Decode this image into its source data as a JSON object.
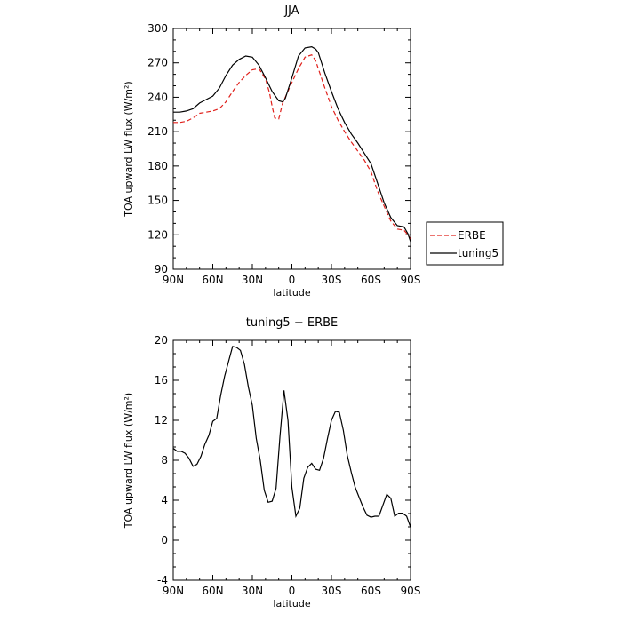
{
  "chart_data": [
    {
      "type": "line",
      "title": "JJA",
      "xlabel": "latitude",
      "ylabel": "TOA upward LW flux (W/m²)",
      "ylim": [
        90,
        300
      ],
      "yticks": [
        90,
        120,
        150,
        180,
        210,
        240,
        270,
        300
      ],
      "xlim": [
        90,
        -90
      ],
      "xticks": [
        90,
        60,
        30,
        0,
        -30,
        -60,
        -90
      ],
      "xtick_labels": [
        "90N",
        "60N",
        "30N",
        "0",
        "30S",
        "60S",
        "90S"
      ],
      "legend": "right",
      "series": [
        {
          "name": "ERBE",
          "color": "#e0201b",
          "dash": "dashed",
          "x": [
            90,
            85,
            80,
            75,
            70,
            65,
            60,
            55,
            50,
            45,
            40,
            35,
            30,
            25,
            20,
            17,
            15,
            13,
            10,
            7,
            5,
            0,
            -5,
            -10,
            -15,
            -18,
            -20,
            -25,
            -30,
            -35,
            -40,
            -45,
            -50,
            -55,
            -60,
            -65,
            -70,
            -75,
            -80,
            -85,
            -88,
            -90
          ],
          "y": [
            218,
            218,
            219,
            222,
            226,
            227,
            228,
            230,
            236,
            245,
            253,
            259,
            264,
            265,
            256,
            244,
            232,
            222,
            221,
            235,
            240,
            253,
            265,
            275,
            277,
            272,
            265,
            248,
            232,
            220,
            210,
            201,
            193,
            185,
            175,
            158,
            145,
            132,
            125,
            124,
            120,
            116
          ]
        },
        {
          "name": "tuning5",
          "color": "#000000",
          "dash": "solid",
          "x": [
            90,
            85,
            80,
            75,
            70,
            65,
            60,
            55,
            50,
            45,
            40,
            35,
            30,
            25,
            20,
            15,
            10,
            7,
            5,
            0,
            -5,
            -10,
            -15,
            -18,
            -20,
            -25,
            -30,
            -35,
            -40,
            -45,
            -50,
            -55,
            -60,
            -65,
            -70,
            -75,
            -80,
            -85,
            -88,
            -90
          ],
          "y": [
            227,
            227,
            228,
            230,
            235,
            238,
            241,
            248,
            259,
            268,
            273,
            276,
            275,
            268,
            257,
            245,
            237,
            236,
            239,
            257,
            276,
            283,
            284,
            282,
            279,
            261,
            245,
            230,
            218,
            208,
            200,
            191,
            182,
            165,
            148,
            135,
            128,
            127,
            121,
            114
          ]
        }
      ]
    },
    {
      "type": "line",
      "title": "tuning5 − ERBE",
      "xlabel": "latitude",
      "ylabel": "TOA upward LW flux (W/m²)",
      "ylim": [
        -4,
        20
      ],
      "yticks": [
        -4,
        0,
        4,
        8,
        12,
        16,
        20
      ],
      "xlim": [
        90,
        -90
      ],
      "xticks": [
        90,
        60,
        30,
        0,
        -30,
        -60,
        -90
      ],
      "xtick_labels": [
        "90N",
        "60N",
        "30N",
        "0",
        "30S",
        "60S",
        "90S"
      ],
      "series": [
        {
          "color": "#000000",
          "dash": "solid",
          "x": [
            90,
            87,
            84,
            81,
            78,
            75,
            72,
            69,
            66,
            63,
            60,
            57,
            54,
            51,
            48,
            45,
            42,
            39,
            36,
            33,
            30,
            27,
            24,
            21,
            18,
            15,
            12,
            9,
            6,
            3,
            0,
            -3,
            -6,
            -9,
            -12,
            -15,
            -18,
            -21,
            -24,
            -27,
            -30,
            -33,
            -36,
            -39,
            -42,
            -45,
            -48,
            -51,
            -54,
            -57,
            -60,
            -63,
            -66,
            -69,
            -72,
            -75,
            -78,
            -81,
            -84,
            -87,
            -90
          ],
          "y": [
            9.2,
            8.9,
            8.9,
            8.7,
            8.2,
            7.4,
            7.6,
            8.4,
            9.6,
            10.5,
            11.9,
            12.2,
            14.5,
            16.4,
            17.9,
            19.4,
            19.3,
            19.0,
            17.6,
            15.3,
            13.5,
            10.2,
            8.0,
            5.0,
            3.8,
            3.9,
            5.2,
            10.4,
            15.0,
            12.0,
            5.3,
            2.4,
            3.2,
            6.2,
            7.3,
            7.7,
            7.1,
            7.0,
            8.2,
            10.2,
            12.0,
            12.9,
            12.8,
            11.0,
            8.5,
            6.8,
            5.3,
            4.3,
            3.3,
            2.5,
            2.3,
            2.4,
            2.4,
            3.5,
            4.6,
            4.2,
            2.4,
            2.7,
            2.7,
            2.4,
            1.3
          ]
        }
      ]
    }
  ]
}
